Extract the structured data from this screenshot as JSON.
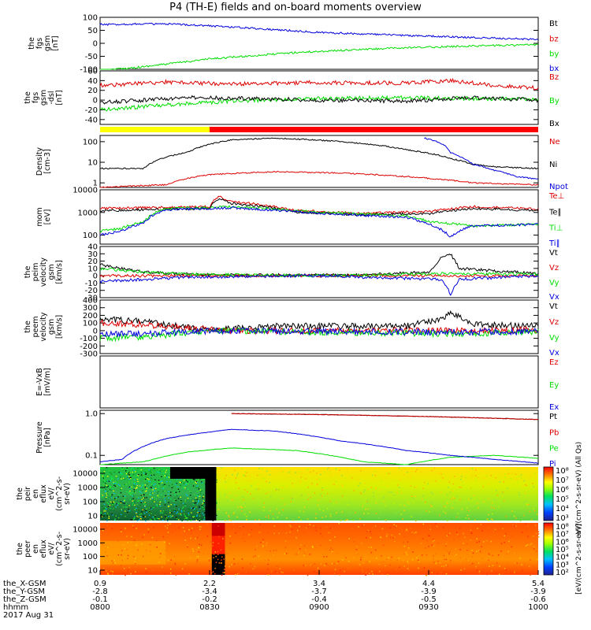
{
  "title": "P4 (TH-E) fields and on-board moments overview",
  "colors": {
    "black": "#000000",
    "red": "#dd0000",
    "green": "#00dd00",
    "blue": "#0000dd",
    "yellow": "#ffff00",
    "bar_red": "#ff0000"
  },
  "footer": {
    "rows": [
      {
        "label": "the_X-GSM",
        "values": [
          "0.9",
          "2.2",
          "3.4",
          "4.4",
          "5.4"
        ]
      },
      {
        "label": "the_Y-GSM",
        "values": [
          "-2.8",
          "-3.4",
          "-3.7",
          "-3.9",
          "-3.9"
        ]
      },
      {
        "label": "the_Z-GSM",
        "values": [
          "-0.1",
          "-0.2",
          "-0.4",
          "-0.5",
          "-0.6"
        ]
      },
      {
        "label": "hhmm",
        "values": [
          "0800",
          "0830",
          "0900",
          "0930",
          "1000"
        ]
      }
    ],
    "date": "2017 Aug 31"
  },
  "colorbar_label_top": "eV/(cm^2-s-sr-eV) (All Qs)",
  "colorbar_label_bottom": "[eV/(cm^2-s-sr-eV)]",
  "chart_data": [
    {
      "id": "fgs_gsm",
      "type": "line",
      "ylabel_lines": [
        "the",
        "fgs",
        "gsm",
        "[nT]"
      ],
      "ylim": [
        -100,
        100
      ],
      "yticks": [
        "100",
        "50",
        "0",
        "-50",
        "-100"
      ],
      "series": [
        {
          "name": "Bt",
          "color": "#000000",
          "x": [],
          "y": []
        },
        {
          "name": "bz",
          "color": "#dd0000",
          "x": [],
          "y": []
        },
        {
          "name": "by",
          "color": "#00dd00",
          "x": [
            0.0,
            0.1,
            0.25,
            0.45,
            0.65,
            0.85,
            1.0
          ],
          "y": [
            -105,
            -90,
            -60,
            -35,
            -20,
            -10,
            -5
          ]
        },
        {
          "name": "bx",
          "color": "#0000dd",
          "x": [
            0.0,
            0.1,
            0.2,
            0.35,
            0.5,
            0.7,
            0.85,
            1.0
          ],
          "y": [
            72,
            75,
            72,
            58,
            42,
            30,
            22,
            15
          ]
        }
      ]
    },
    {
      "id": "fgs_dsl",
      "type": "line",
      "ylabel_lines": [
        "the",
        "fgs",
        "gsm",
        "-dsl",
        "[nT]"
      ],
      "ylim": [
        -50,
        60
      ],
      "yticks": [
        "60",
        "40",
        "20",
        "0",
        "-20",
        "-40"
      ],
      "series": [
        {
          "name": "Bz",
          "color": "#dd0000",
          "x": [
            0.0,
            0.15,
            0.3,
            0.5,
            0.7,
            0.8,
            0.9,
            1.0
          ],
          "y": [
            30,
            37,
            33,
            36,
            35,
            40,
            30,
            25
          ]
        },
        {
          "name": "By",
          "color": "#00dd00",
          "x": [
            0.0,
            0.15,
            0.3,
            0.5,
            0.7,
            0.85,
            1.0
          ],
          "y": [
            -20,
            -10,
            -2,
            3,
            5,
            3,
            2
          ]
        },
        {
          "name": "Bx",
          "color": "#000000",
          "x": [
            0.0,
            0.1,
            0.2,
            0.35,
            0.5,
            0.7,
            0.85,
            1.0
          ],
          "y": [
            -5,
            0,
            5,
            3,
            0,
            -2,
            5,
            0
          ]
        }
      ]
    },
    {
      "id": "density",
      "type": "line",
      "scale": "log",
      "ylabel_lines": [
        "Density",
        "[cm-3]"
      ],
      "ylim": [
        0.6,
        200
      ],
      "yticks": [
        "100",
        "10",
        "1"
      ],
      "series": [
        {
          "name": "Ne",
          "color": "#dd0000",
          "x": [
            0.0,
            0.15,
            0.25,
            0.4,
            0.55,
            0.7,
            0.85,
            1.0
          ],
          "y": [
            0.6,
            0.8,
            2.5,
            3.5,
            3.0,
            2.0,
            1.0,
            0.8
          ]
        },
        {
          "name": "Ni",
          "color": "#000000",
          "x": [
            0.0,
            0.1,
            0.2,
            0.3,
            0.4,
            0.55,
            0.7,
            0.8,
            0.85,
            0.9,
            1.0
          ],
          "y": [
            5,
            5,
            30,
            120,
            150,
            100,
            40,
            15,
            8,
            6,
            5
          ]
        },
        {
          "name": "Npot",
          "color": "#0000dd",
          "x": [
            0.74,
            0.78,
            0.8,
            0.82,
            0.85,
            0.9,
            0.95,
            1.0
          ],
          "y": [
            150,
            80,
            30,
            20,
            8,
            4,
            2,
            1.5
          ]
        }
      ]
    },
    {
      "id": "temperature",
      "type": "line",
      "scale": "log",
      "ylabel_lines": [
        "mom",
        "[eV]"
      ],
      "ylim": [
        40,
        10000
      ],
      "yticks": [
        "10000",
        "1000",
        "100"
      ],
      "series": [
        {
          "name": "Te⊥",
          "color": "#dd0000",
          "x": [
            0.0,
            0.25,
            0.27,
            0.3,
            0.45,
            0.6,
            0.75,
            0.85,
            1.0
          ],
          "y": [
            1500,
            1800,
            5000,
            3000,
            1200,
            900,
            1100,
            1800,
            1400
          ]
        },
        {
          "name": "Te∥",
          "color": "#000000",
          "x": [
            0.0,
            0.25,
            0.27,
            0.3,
            0.45,
            0.6,
            0.75,
            0.85,
            1.0
          ],
          "y": [
            1200,
            1500,
            4000,
            2500,
            1000,
            800,
            900,
            1500,
            1200
          ]
        },
        {
          "name": "Ti⊥",
          "color": "#00dd00",
          "x": [
            0.0,
            0.05,
            0.1,
            0.15,
            0.25,
            0.3,
            0.5,
            0.7,
            0.75,
            0.85,
            1.0
          ],
          "y": [
            150,
            200,
            400,
            1500,
            1600,
            1800,
            1000,
            700,
            400,
            250,
            300
          ]
        },
        {
          "name": "Ti∥",
          "color": "#0000dd",
          "x": [
            0.0,
            0.05,
            0.1,
            0.15,
            0.25,
            0.3,
            0.5,
            0.7,
            0.75,
            0.8,
            0.85,
            1.0
          ],
          "y": [
            100,
            150,
            350,
            1300,
            1500,
            1600,
            900,
            600,
            300,
            80,
            250,
            300
          ]
        }
      ]
    },
    {
      "id": "velocity_peim",
      "type": "line",
      "ylabel_lines": [
        "the",
        "peim",
        "velocity",
        "gsm",
        "[km/s]"
      ],
      "ylim": [
        -30,
        40
      ],
      "yticks": [
        "40",
        "30",
        "20",
        "10",
        "0",
        "-10",
        "-20",
        "-30"
      ],
      "series": [
        {
          "name": "Vt",
          "color": "#000000",
          "x": [
            0.0,
            0.05,
            0.1,
            0.2,
            0.3,
            0.6,
            0.75,
            0.78,
            0.8,
            0.82,
            1.0
          ],
          "y": [
            15,
            10,
            5,
            2,
            1,
            1,
            5,
            25,
            30,
            10,
            3
          ]
        },
        {
          "name": "Vz",
          "color": "#dd0000",
          "x": [
            0.0,
            0.2,
            0.5,
            0.8,
            1.0
          ],
          "y": [
            0,
            0,
            0,
            0,
            0
          ]
        },
        {
          "name": "Vy",
          "color": "#00dd00",
          "x": [
            0.0,
            0.1,
            0.2,
            0.5,
            0.8,
            1.0
          ],
          "y": [
            10,
            5,
            2,
            0,
            3,
            2
          ]
        },
        {
          "name": "Vx",
          "color": "#0000dd",
          "x": [
            0.0,
            0.1,
            0.2,
            0.5,
            0.78,
            0.8,
            0.82,
            1.0
          ],
          "y": [
            -8,
            -5,
            -2,
            0,
            -5,
            -25,
            -5,
            0
          ]
        }
      ]
    },
    {
      "id": "velocity_peem",
      "type": "line",
      "ylabel_lines": [
        "the",
        "peem",
        "velocity",
        "gsm",
        "[km/s]"
      ],
      "ylim": [
        -300,
        400
      ],
      "yticks": [
        "400",
        "300",
        "200",
        "100",
        "0",
        "-100",
        "-200",
        "-300"
      ],
      "series": [
        {
          "name": "Vt",
          "color": "#000000",
          "x": [
            0.0,
            0.1,
            0.2,
            0.25,
            0.4,
            0.7,
            0.78,
            0.8,
            0.85,
            1.0
          ],
          "y": [
            150,
            120,
            40,
            20,
            60,
            60,
            150,
            250,
            80,
            60
          ]
        },
        {
          "name": "Vz",
          "color": "#dd0000",
          "x": [
            0.0,
            0.1,
            0.2,
            0.3,
            0.5,
            0.8,
            1.0
          ],
          "y": [
            100,
            80,
            30,
            0,
            0,
            0,
            10
          ]
        },
        {
          "name": "Vy",
          "color": "#00dd00",
          "x": [
            0.0,
            0.1,
            0.2,
            0.3,
            0.5,
            0.8,
            1.0
          ],
          "y": [
            -100,
            -80,
            -30,
            0,
            -20,
            -40,
            -20
          ]
        },
        {
          "name": "Vx",
          "color": "#0000dd",
          "x": [
            0.0,
            0.1,
            0.2,
            0.3,
            0.5,
            0.8,
            1.0
          ],
          "y": [
            -50,
            -40,
            -10,
            0,
            -10,
            -20,
            -10
          ]
        }
      ]
    },
    {
      "id": "efield",
      "type": "line",
      "ylabel_lines": [
        "E=-VxB",
        "[mV/m]"
      ],
      "ylim": [
        -1,
        1
      ],
      "yticks": [],
      "series": [
        {
          "name": "Ez",
          "color": "#dd0000",
          "x": [],
          "y": []
        },
        {
          "name": "Ey",
          "color": "#00dd00",
          "x": [],
          "y": []
        },
        {
          "name": "Ex",
          "color": "#0000dd",
          "x": [],
          "y": []
        }
      ]
    },
    {
      "id": "pressure",
      "type": "line",
      "scale": "log",
      "ylabel_lines": [
        "Pressure",
        "[nPa]"
      ],
      "ylim": [
        0.06,
        1.2
      ],
      "yticks": [
        "1.0",
        "0.1"
      ],
      "series": [
        {
          "name": "Pt",
          "color": "#000000",
          "x": [
            0.3,
            0.5,
            0.75,
            1.0
          ],
          "y": [
            1.0,
            0.95,
            0.85,
            0.72
          ]
        },
        {
          "name": "Pb",
          "color": "#dd0000",
          "x": [
            0.3,
            0.5,
            0.75,
            1.0
          ],
          "y": [
            1.0,
            0.95,
            0.85,
            0.72
          ]
        },
        {
          "name": "Pe",
          "color": "#00dd00",
          "x": [
            0.0,
            0.1,
            0.2,
            0.3,
            0.45,
            0.6,
            0.7,
            0.8,
            0.9,
            1.0
          ],
          "y": [
            0.06,
            0.07,
            0.12,
            0.15,
            0.13,
            0.07,
            0.06,
            0.09,
            0.1,
            0.085
          ]
        },
        {
          "name": "Pi",
          "color": "#0000dd",
          "x": [
            0.0,
            0.05,
            0.15,
            0.3,
            0.4,
            0.55,
            0.7,
            0.8,
            0.9,
            1.0
          ],
          "y": [
            0.07,
            0.08,
            0.25,
            0.42,
            0.38,
            0.22,
            0.13,
            0.1,
            0.08,
            0.065
          ]
        }
      ]
    },
    {
      "id": "peir_spectrum",
      "type": "heatmap",
      "ylabel_lines": [
        "the",
        "peir",
        "en",
        "eflux",
        "eV/",
        "(cm^2-s-",
        "sr-eV)"
      ],
      "yticks": [
        "10000",
        "1000",
        "100",
        "10"
      ],
      "colorbar_ticks": [
        "10^8",
        "10^7",
        "10^6",
        "10^5",
        "10^4",
        "10^3"
      ]
    },
    {
      "id": "peer_spectrum",
      "type": "heatmap",
      "ylabel_lines": [
        "the",
        "peer",
        "en",
        "eflux",
        "eV/",
        "(cm^2-s-",
        "sr-eV)"
      ],
      "yticks": [
        "10000",
        "1000",
        "100",
        "10"
      ],
      "colorbar_ticks": [
        "10^8",
        "10^7",
        "10^6",
        "10^5",
        "10^4",
        "10^3",
        "10^2"
      ]
    }
  ]
}
